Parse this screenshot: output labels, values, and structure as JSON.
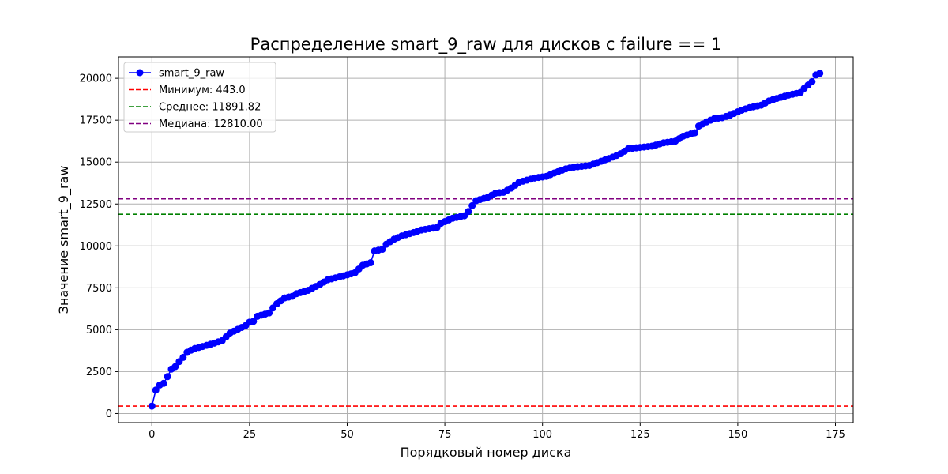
{
  "chart_data": {
    "type": "line",
    "title": "Распределение smart_9_raw для дисков с failure == 1",
    "xlabel": "Порядковый номер диска",
    "ylabel": "Значение smart_9_raw",
    "xlim": [
      -8.55,
      179.55
    ],
    "ylim": [
      -543.7,
      21278.7
    ],
    "xticks": [
      0,
      25,
      50,
      75,
      100,
      125,
      150,
      175
    ],
    "yticks": [
      0,
      2500,
      5000,
      7500,
      10000,
      12500,
      15000,
      17500,
      20000
    ],
    "grid": true,
    "legend_position": "top-left",
    "series": [
      {
        "name": "smart_9_raw",
        "color": "#0000ff",
        "marker": "circle",
        "anchors": [
          [
            0,
            443
          ],
          [
            1,
            1400
          ],
          [
            2,
            1700
          ],
          [
            3,
            1800
          ],
          [
            4,
            2200
          ],
          [
            5,
            2650
          ],
          [
            6,
            2800
          ],
          [
            7,
            3100
          ],
          [
            8,
            3350
          ],
          [
            9,
            3650
          ],
          [
            10,
            3780
          ],
          [
            11,
            3880
          ],
          [
            13,
            4000
          ],
          [
            16,
            4200
          ],
          [
            18,
            4350
          ],
          [
            20,
            4800
          ],
          [
            24,
            5250
          ],
          [
            25,
            5450
          ],
          [
            26,
            5500
          ],
          [
            27,
            5800
          ],
          [
            30,
            6000
          ],
          [
            31,
            6300
          ],
          [
            32,
            6550
          ],
          [
            34,
            6900
          ],
          [
            36,
            7000
          ],
          [
            37,
            7150
          ],
          [
            40,
            7350
          ],
          [
            43,
            7700
          ],
          [
            45,
            7980
          ],
          [
            48,
            8150
          ],
          [
            52,
            8400
          ],
          [
            54,
            8850
          ],
          [
            56,
            9000
          ],
          [
            57,
            9700
          ],
          [
            59,
            9800
          ],
          [
            60,
            10100
          ],
          [
            62,
            10400
          ],
          [
            64,
            10600
          ],
          [
            67,
            10800
          ],
          [
            69,
            10950
          ],
          [
            73,
            11100
          ],
          [
            74,
            11350
          ],
          [
            77,
            11650
          ],
          [
            80,
            11800
          ],
          [
            81,
            12050
          ],
          [
            82,
            12400
          ],
          [
            83,
            12700
          ],
          [
            86,
            12900
          ],
          [
            88,
            13150
          ],
          [
            90,
            13200
          ],
          [
            92,
            13450
          ],
          [
            94,
            13800
          ],
          [
            98,
            14050
          ],
          [
            101,
            14150
          ],
          [
            103,
            14350
          ],
          [
            106,
            14600
          ],
          [
            108,
            14700
          ],
          [
            112,
            14800
          ],
          [
            115,
            15050
          ],
          [
            118,
            15300
          ],
          [
            120,
            15500
          ],
          [
            122,
            15800
          ],
          [
            124,
            15850
          ],
          [
            128,
            15950
          ],
          [
            131,
            16150
          ],
          [
            134,
            16250
          ],
          [
            136,
            16550
          ],
          [
            139,
            16750
          ],
          [
            140,
            17150
          ],
          [
            142,
            17400
          ],
          [
            144,
            17600
          ],
          [
            146,
            17650
          ],
          [
            148,
            17800
          ],
          [
            151,
            18100
          ],
          [
            153,
            18250
          ],
          [
            156,
            18400
          ],
          [
            158,
            18650
          ],
          [
            160,
            18800
          ],
          [
            163,
            19000
          ],
          [
            166,
            19150
          ],
          [
            167,
            19400
          ],
          [
            169,
            19800
          ],
          [
            170,
            20200
          ],
          [
            171,
            20300
          ]
        ]
      },
      {
        "name": "Минимум: 443.0",
        "color": "#ff0000",
        "style": "dashed",
        "y": 443.0
      },
      {
        "name": "Среднее: 11891.82",
        "color": "#008000",
        "style": "dashed",
        "y": 11891.82
      },
      {
        "name": "Медиана: 12810.00",
        "color": "#800080",
        "style": "dashed",
        "y": 12810.0
      }
    ]
  }
}
